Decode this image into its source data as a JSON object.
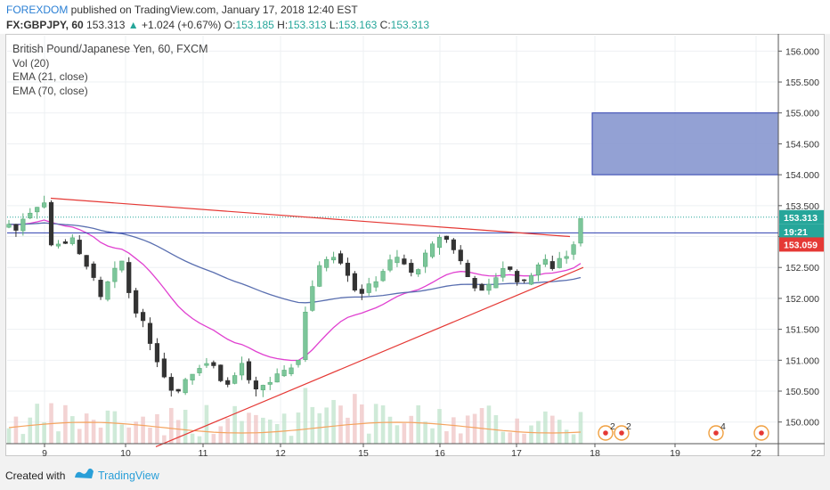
{
  "header": {
    "author": "FOREXDOM",
    "published_text": " published on TradingView.com, January 17, 2018 12:40 EST",
    "symbol": "FX:GBPJPY, 60",
    "last": "153.313",
    "change_arrow": "▲",
    "change": "+1.024 (+0.67%)",
    "o_label": "O:",
    "o_value": "153.185",
    "h_label": "H:",
    "h_value": "153.313",
    "l_label": "L:",
    "l_value": "153.163",
    "c_label": "C:",
    "c_value": "153.313"
  },
  "legend": {
    "title": "British Pound/Japanese Yen, 60, FXCM",
    "vol": "Vol (20)",
    "ema21": "EMA (21, close)",
    "ema70": "EMA (70, close)"
  },
  "footer": {
    "created_with": "Created with",
    "brand": "TradingView"
  },
  "colors": {
    "up": "#5aae7a",
    "down": "#333333",
    "ema21": "#e040d0",
    "ema70": "#5a6fb0",
    "trendline": "#e53935",
    "level": "#2d3fb0",
    "target_box": "#8797cf",
    "vol_ma": "#f4a460"
  },
  "chart_data": {
    "type": "candlestick",
    "ylim": [
      149.65,
      156.25
    ],
    "y_ticks": [
      "156.000",
      "155.500",
      "155.000",
      "154.500",
      "154.000",
      "153.500",
      "153.000",
      "152.500",
      "152.000",
      "151.500",
      "151.000",
      "150.500",
      "150.000"
    ],
    "x_ticks": [
      "9",
      "10",
      "11",
      "12",
      "15",
      "16",
      "17",
      "18",
      "19",
      "22"
    ],
    "price_labels": {
      "last": "153.313",
      "countdown": "19:21",
      "level": "153.059"
    },
    "target_zone": [
      154.0,
      155.0
    ],
    "horizontal_level": 153.059,
    "upper_trendline": {
      "from": 153.62,
      "to": 153.0
    },
    "lower_trendline": {
      "from": 149.6,
      "to": 152.5
    },
    "close_path": [
      153.2,
      153.1,
      153.3,
      153.4,
      153.5,
      153.55,
      152.85,
      152.9,
      152.9,
      152.95,
      152.7,
      152.55,
      152.3,
      152.0,
      152.25,
      152.45,
      152.6,
      152.1,
      151.8,
      151.6,
      151.3,
      151.0,
      150.75,
      150.55,
      150.5,
      150.7,
      150.8,
      150.9,
      150.95,
      150.9,
      150.7,
      150.6,
      150.75,
      150.95,
      150.65,
      150.5,
      150.6,
      150.65,
      150.75,
      150.8,
      150.9,
      151.0,
      151.8,
      152.2,
      152.5,
      152.65,
      152.7,
      152.6,
      152.4,
      152.15,
      152.1,
      152.2,
      152.3,
      152.45,
      152.6,
      152.65,
      152.55,
      152.4,
      152.5,
      152.7,
      152.85,
      153.0,
      152.95,
      152.8,
      152.6,
      152.35,
      152.2,
      152.1,
      152.2,
      152.35,
      152.5,
      152.45,
      152.3,
      152.25,
      152.4,
      152.55,
      152.6,
      152.5,
      152.65,
      152.7,
      152.9,
      153.31
    ],
    "event_counts": [
      "2",
      "2",
      "4"
    ]
  }
}
